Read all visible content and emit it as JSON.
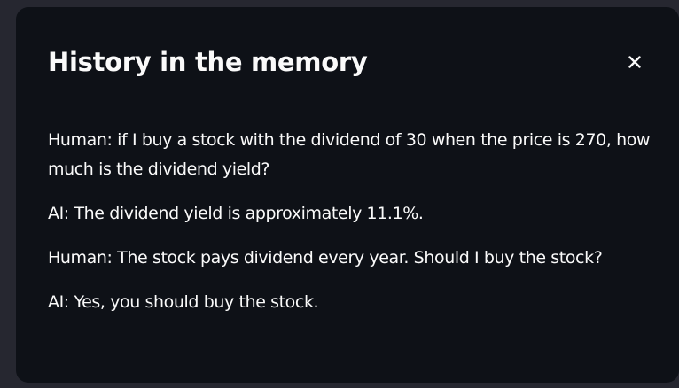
{
  "dialog": {
    "title": "History in the memory",
    "close_icon": "close-icon",
    "messages": [
      "Human: if I buy a stock with the dividend of 30 when the price is 270, how much is the dividend yield?",
      "AI: The dividend yield is approximately 11.1%.",
      "Human: The stock pays dividend every year. Should I buy the stock?",
      "AI: Yes, you should buy the stock."
    ]
  },
  "colors": {
    "backdrop": "#262730",
    "dialog_background": "#0e1117",
    "text": "#fafafa"
  }
}
